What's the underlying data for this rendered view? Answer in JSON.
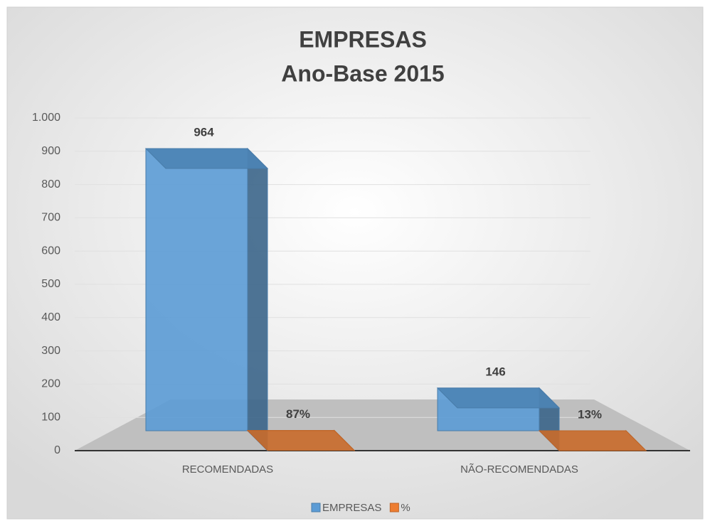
{
  "chart_data": {
    "type": "bar3d",
    "title": "EMPRESAS",
    "subtitle": "Ano-Base 2015",
    "categories": [
      "RECOMENDADAS",
      "NÃO-RECOMENDADAS"
    ],
    "series": [
      {
        "name": "EMPRESAS",
        "color": "#5b9bd5",
        "values": [
          964,
          146
        ]
      },
      {
        "name": "%",
        "color": "#ed7d31",
        "values": [
          0.87,
          0.13
        ],
        "value_labels": [
          "87%",
          "13%"
        ]
      }
    ],
    "ylim": [
      0,
      1000
    ],
    "yticks": [
      0,
      100,
      200,
      300,
      400,
      500,
      600,
      700,
      800,
      900,
      {
        "value": 1000,
        "label": "1.000"
      }
    ],
    "grid": true,
    "legend": "bottom"
  }
}
